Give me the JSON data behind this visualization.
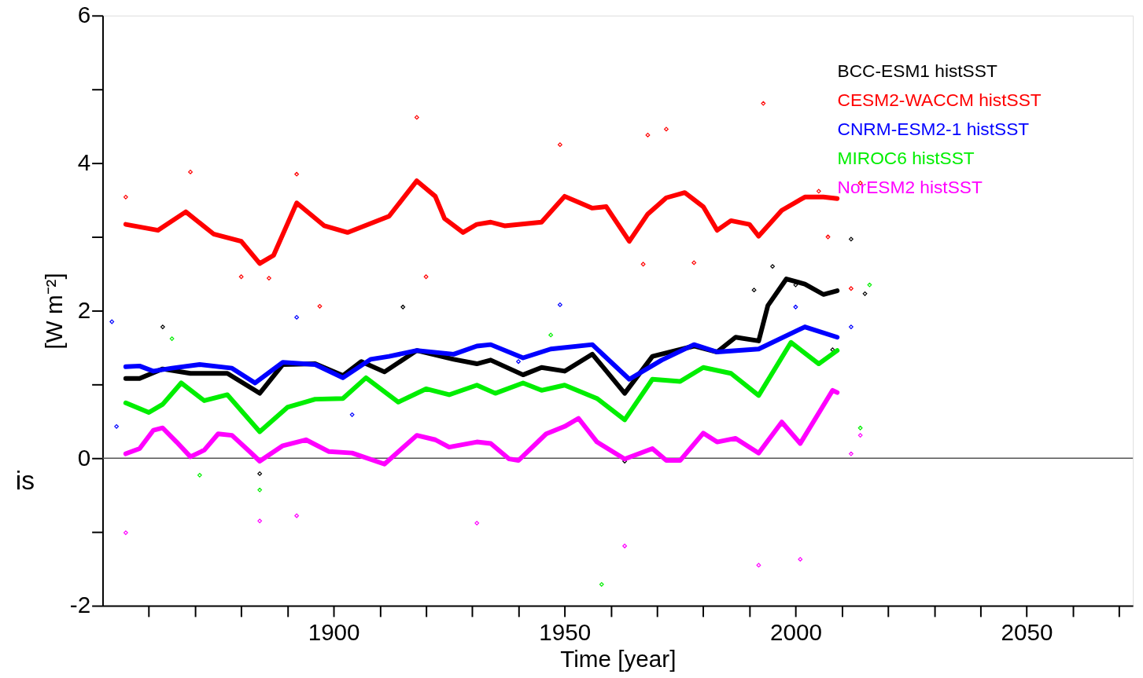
{
  "chart_data": {
    "type": "line",
    "xlabel": "Time [year]",
    "ylabel": "[W m⁻²]",
    "xlim": [
      1850,
      2073
    ],
    "ylim": [
      -2,
      6
    ],
    "xticks": [
      {
        "value": 1860,
        "label": null
      },
      {
        "value": 1870,
        "label": null
      },
      {
        "value": 1880,
        "label": null
      },
      {
        "value": 1890,
        "label": null
      },
      1900,
      {
        "value": 1910,
        "label": null
      },
      {
        "value": 1920,
        "label": null
      },
      {
        "value": 1930,
        "label": null
      },
      {
        "value": 1940,
        "label": null
      },
      1950,
      {
        "value": 1960,
        "label": null
      },
      {
        "value": 1970,
        "label": null
      },
      {
        "value": 1980,
        "label": null
      },
      {
        "value": 1990,
        "label": null
      },
      2000,
      {
        "value": 2010,
        "label": null
      },
      {
        "value": 2020,
        "label": null
      },
      {
        "value": 2030,
        "label": null
      },
      {
        "value": 2040,
        "label": null
      },
      2050,
      {
        "value": 2060,
        "label": null
      },
      {
        "value": 2070,
        "label": null
      }
    ],
    "yticks": [
      -2,
      {
        "value": -1,
        "label": null
      },
      0,
      {
        "value": 1,
        "label": null
      },
      2,
      {
        "value": 3,
        "label": null
      },
      4,
      {
        "value": 5,
        "label": null
      },
      6
    ],
    "grid": false,
    "legend": "top right",
    "ref_lines": [
      {
        "axis": "y",
        "value": 0,
        "color": "#555555"
      }
    ],
    "annotations": [
      "is"
    ],
    "series": [
      {
        "type": "scatter",
        "marker": "diamond",
        "color": "#ff0000",
        "x": [
          1855,
          1869,
          1880,
          1886,
          1892,
          1897,
          1918,
          1920,
          1949,
          1967,
          1968,
          1972,
          1978,
          1993,
          2005,
          2007,
          2012,
          2014
        ],
        "values": [
          3.54,
          3.88,
          2.46,
          2.44,
          3.85,
          2.06,
          4.62,
          2.46,
          4.25,
          2.63,
          4.38,
          4.46,
          2.65,
          4.81,
          3.62,
          3.0,
          2.3,
          3.73
        ]
      },
      {
        "type": "scatter",
        "marker": "diamond",
        "color": "#000000",
        "x": [
          1863,
          1884,
          1915,
          1963,
          1991,
          1995,
          2000,
          2008,
          2012,
          2015
        ],
        "values": [
          1.78,
          -0.21,
          2.05,
          -0.04,
          2.28,
          2.6,
          2.35,
          1.47,
          2.97,
          2.23
        ]
      },
      {
        "type": "scatter",
        "marker": "diamond",
        "color": "#0000ff",
        "x": [
          1852,
          1853,
          1892,
          1904,
          1940,
          1949,
          2000,
          2012
        ],
        "values": [
          1.85,
          0.43,
          1.91,
          0.59,
          1.31,
          2.08,
          2.05,
          1.78
        ]
      },
      {
        "type": "scatter",
        "marker": "diamond",
        "color": "#00ee00",
        "x": [
          1865,
          1871,
          1884,
          1947,
          1958,
          2014,
          2016
        ],
        "values": [
          1.62,
          -0.23,
          -0.43,
          1.67,
          -1.71,
          0.41,
          2.35
        ]
      },
      {
        "type": "scatter",
        "marker": "diamond",
        "color": "#ff00ff",
        "x": [
          1855,
          1884,
          1892,
          1931,
          1963,
          1992,
          2001,
          2012,
          2014
        ],
        "values": [
          -1.01,
          -0.85,
          -0.78,
          -0.88,
          -1.19,
          -1.45,
          -1.37,
          0.06,
          0.31
        ]
      },
      {
        "name": "BCC-ESM1 histSST",
        "color": "#000000",
        "x": [
          1855,
          1858,
          1863,
          1869,
          1877,
          1884,
          1889,
          1896,
          1902,
          1906,
          1911,
          1918,
          1926,
          1931,
          1934,
          1941,
          1945,
          1950,
          1956,
          1963,
          1969,
          1978,
          1983,
          1987,
          1992,
          1994,
          1998,
          2002,
          2006,
          2009
        ],
        "values": [
          1.08,
          1.08,
          1.21,
          1.15,
          1.15,
          0.88,
          1.27,
          1.28,
          1.12,
          1.31,
          1.17,
          1.46,
          1.34,
          1.28,
          1.33,
          1.13,
          1.23,
          1.18,
          1.41,
          0.88,
          1.38,
          1.52,
          1.44,
          1.64,
          1.59,
          2.07,
          2.43,
          2.36,
          2.22,
          2.27
        ]
      },
      {
        "name": "CESM2-WACCM histSST",
        "color": "#ff0000",
        "x": [
          1855,
          1862,
          1868,
          1874,
          1880,
          1884,
          1887,
          1892,
          1898,
          1903,
          1912,
          1918,
          1922,
          1924,
          1928,
          1931,
          1934,
          1937,
          1945,
          1950,
          1956,
          1959,
          1964,
          1968,
          1972,
          1976,
          1980,
          1983,
          1986,
          1990,
          1992,
          1997,
          2002,
          2006,
          2009
        ],
        "values": [
          3.17,
          3.09,
          3.34,
          3.04,
          2.94,
          2.64,
          2.75,
          3.46,
          3.15,
          3.06,
          3.28,
          3.76,
          3.55,
          3.25,
          3.06,
          3.17,
          3.2,
          3.15,
          3.2,
          3.55,
          3.39,
          3.41,
          2.94,
          3.31,
          3.53,
          3.6,
          3.41,
          3.09,
          3.22,
          3.17,
          3.01,
          3.36,
          3.54,
          3.54,
          3.52
        ]
      },
      {
        "name": "CNRM-ESM2-1 histSST",
        "color": "#0000ff",
        "x": [
          1855,
          1858,
          1861,
          1865,
          1871,
          1878,
          1883,
          1889,
          1896,
          1902,
          1908,
          1912,
          1918,
          1926,
          1931,
          1934,
          1941,
          1947,
          1956,
          1964,
          1971,
          1978,
          1983,
          1992,
          2002,
          2009
        ],
        "values": [
          1.24,
          1.25,
          1.18,
          1.22,
          1.27,
          1.22,
          1.02,
          1.3,
          1.27,
          1.09,
          1.34,
          1.38,
          1.46,
          1.41,
          1.52,
          1.54,
          1.36,
          1.48,
          1.54,
          1.07,
          1.33,
          1.54,
          1.44,
          1.48,
          1.78,
          1.64
        ]
      },
      {
        "name": "MIROC6 histSST",
        "color": "#00ee00",
        "x": [
          1855,
          1860,
          1863,
          1867,
          1872,
          1877,
          1884,
          1890,
          1896,
          1902,
          1907,
          1914,
          1920,
          1925,
          1931,
          1935,
          1941,
          1945,
          1950,
          1957,
          1963,
          1969,
          1975,
          1980,
          1986,
          1992,
          1999,
          2005,
          2009
        ],
        "values": [
          0.75,
          0.62,
          0.73,
          1.02,
          0.78,
          0.86,
          0.36,
          0.69,
          0.8,
          0.81,
          1.09,
          0.76,
          0.94,
          0.86,
          0.99,
          0.88,
          1.02,
          0.92,
          0.99,
          0.81,
          0.52,
          1.07,
          1.04,
          1.23,
          1.15,
          0.85,
          1.57,
          1.28,
          1.46
        ]
      },
      {
        "name": "NorESM2 histSST",
        "color": "#ff00ff",
        "x": [
          1855,
          1858,
          1861,
          1863,
          1866,
          1869,
          1872,
          1875,
          1878,
          1882,
          1884,
          1889,
          1894,
          1899,
          1904,
          1911,
          1918,
          1922,
          1925,
          1931,
          1934,
          1938,
          1940,
          1946,
          1950,
          1953,
          1957,
          1963,
          1969,
          1972,
          1975,
          1980,
          1983,
          1987,
          1992,
          1997,
          2001,
          2008,
          2009
        ],
        "values": [
          0.06,
          0.13,
          0.38,
          0.41,
          0.22,
          0.02,
          0.11,
          0.33,
          0.31,
          0.08,
          -0.04,
          0.17,
          0.25,
          0.09,
          0.07,
          -0.08,
          0.31,
          0.25,
          0.15,
          0.22,
          0.2,
          -0.01,
          -0.03,
          0.33,
          0.43,
          0.54,
          0.22,
          -0.01,
          0.13,
          -0.03,
          -0.03,
          0.34,
          0.22,
          0.27,
          0.07,
          0.49,
          0.2,
          0.92,
          0.89
        ]
      }
    ]
  }
}
